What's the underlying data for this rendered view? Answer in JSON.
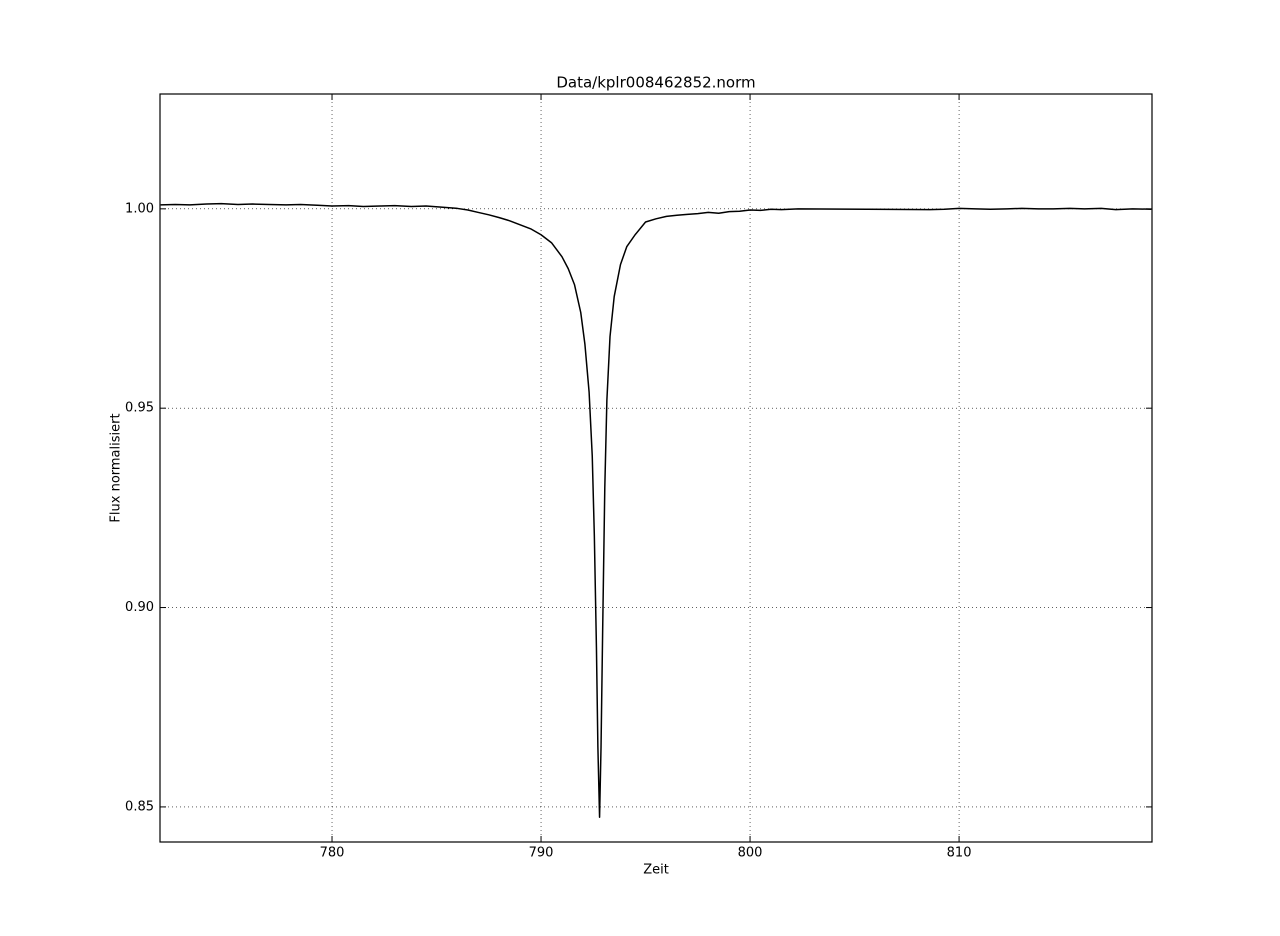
{
  "chart_data": {
    "type": "line",
    "title": "Data/kplr008462852.norm",
    "xlabel": "Zeit",
    "ylabel": "Flux normalisiert",
    "x": [
      771.8,
      772.5,
      773.2,
      774,
      774.7,
      775.5,
      776.2,
      777,
      777.8,
      778.5,
      779.3,
      780,
      780.8,
      781.5,
      782.3,
      783,
      783.8,
      784.5,
      785.3,
      786,
      786.5,
      787,
      787.5,
      788,
      788.5,
      789,
      789.5,
      790,
      790.5,
      791,
      791.3,
      791.6,
      791.9,
      792.1,
      792.3,
      792.45,
      792.55,
      792.65,
      792.72,
      792.8,
      792.87,
      792.95,
      793.05,
      793.15,
      793.3,
      793.5,
      793.8,
      794.1,
      794.5,
      795,
      795.5,
      796,
      796.5,
      797,
      797.5,
      798,
      798.5,
      799,
      799.5,
      800,
      800.5,
      801,
      801.5,
      802.3,
      808.6,
      809.3,
      810,
      810.8,
      811.5,
      812.3,
      813,
      813.8,
      814.5,
      815.3,
      816,
      816.8,
      817.5,
      818.3,
      819.2
    ],
    "values": [
      1.001,
      1.0011,
      1.001,
      1.0012,
      1.0013,
      1.0011,
      1.0012,
      1.0011,
      1.001,
      1.0011,
      1.0009,
      1.0007,
      1.0008,
      1.0006,
      1.0007,
      1.0008,
      1.0006,
      1.0007,
      1.0004,
      1.0001,
      0.9997,
      0.9991,
      0.9985,
      0.9978,
      0.997,
      0.996,
      0.995,
      0.9935,
      0.9915,
      0.988,
      0.985,
      0.981,
      0.974,
      0.966,
      0.954,
      0.938,
      0.918,
      0.89,
      0.865,
      0.8474,
      0.865,
      0.895,
      0.93,
      0.952,
      0.968,
      0.978,
      0.986,
      0.9905,
      0.9935,
      0.9967,
      0.9975,
      0.9981,
      0.9984,
      0.9986,
      0.9988,
      0.9991,
      0.9989,
      0.9993,
      0.9994,
      0.9997,
      0.9996,
      0.9999,
      0.9998,
      1.0,
      0.9998,
      0.9999,
      1.0001,
      1.0,
      0.9999,
      1.0,
      1.0001,
      1.0,
      1.0,
      1.0001,
      1.0,
      1.0001,
      0.9998,
      1.0,
      0.9999
    ],
    "color": "#000000",
    "xlim": [
      771.77,
      819.23
    ],
    "ylim": [
      0.8412,
      1.0288
    ],
    "xticks": [
      780,
      790,
      800,
      810
    ],
    "yticks": [
      {
        "value": 0.85,
        "label": "0.85"
      },
      {
        "value": 0.9,
        "label": "0.90"
      },
      {
        "value": 0.95,
        "label": "0.95"
      },
      {
        "value": 1,
        "label": "1.00"
      }
    ],
    "grid": true
  }
}
